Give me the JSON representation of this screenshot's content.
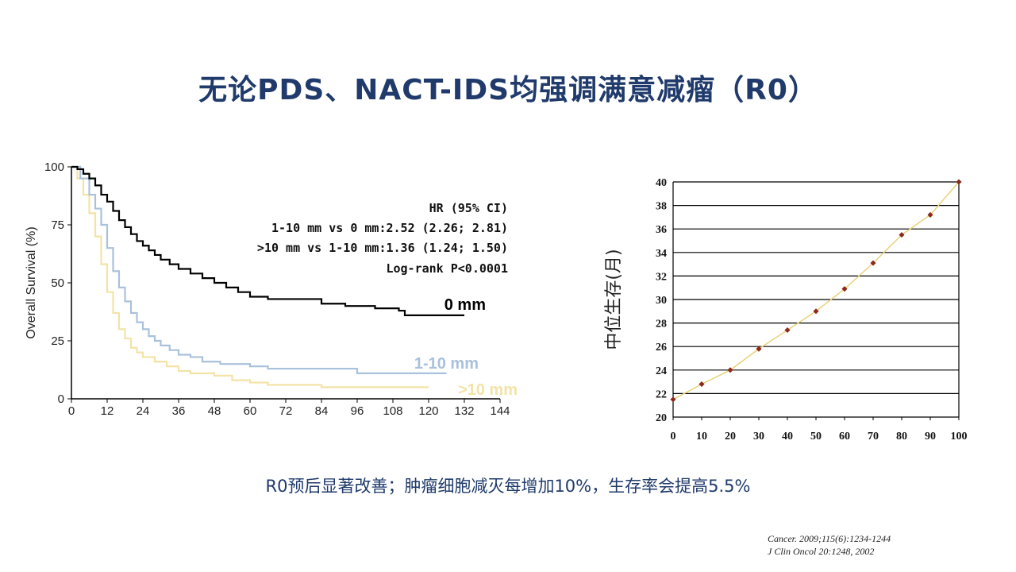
{
  "slide": {
    "title": "无论PDS、NACT-IDS均强调满意减瘤（R0）",
    "caption": "R0预后显著改善；肿瘤细胞减灭每增加10%，生存率会提高5.5%",
    "references": [
      "Cancer. 2009;115(6):1234-1244",
      "J Clin Oncol 20:1248, 2002"
    ]
  },
  "chart_data": [
    {
      "type": "line",
      "subtype": "kaplan-meier",
      "ylabel": "Overall Survival (%)",
      "xlabel": "",
      "xlim": [
        0,
        144
      ],
      "ylim": [
        0,
        100
      ],
      "xticks": [
        0,
        12,
        24,
        36,
        48,
        60,
        72,
        84,
        96,
        108,
        120,
        132,
        144
      ],
      "yticks": [
        0,
        25,
        50,
        75,
        100
      ],
      "annotations": [
        "HR (95% CI)",
        "1-10 mm vs 0 mm:2.52 (2.26; 2.81)",
        ">10 mm vs 1-10 mm:1.36 (1.24; 1.50)",
        "Log-rank P<0.0001"
      ],
      "series": [
        {
          "name": "0 mm",
          "color": "#000000",
          "points": [
            [
              0,
              100
            ],
            [
              2,
              99
            ],
            [
              4,
              97
            ],
            [
              6,
              95
            ],
            [
              8,
              92
            ],
            [
              10,
              88
            ],
            [
              12,
              85
            ],
            [
              14,
              81
            ],
            [
              16,
              77
            ],
            [
              18,
              74
            ],
            [
              20,
              71
            ],
            [
              22,
              68
            ],
            [
              24,
              66
            ],
            [
              26,
              64
            ],
            [
              28,
              62
            ],
            [
              30,
              60
            ],
            [
              33,
              58
            ],
            [
              36,
              56
            ],
            [
              40,
              54
            ],
            [
              44,
              52
            ],
            [
              48,
              50
            ],
            [
              52,
              48
            ],
            [
              56,
              46
            ],
            [
              60,
              44
            ],
            [
              66,
              43
            ],
            [
              76,
              43
            ],
            [
              84,
              41
            ],
            [
              92,
              40
            ],
            [
              102,
              39
            ],
            [
              110,
              38
            ],
            [
              112,
              36
            ],
            [
              132,
              36
            ]
          ]
        },
        {
          "name": "1-10 mm",
          "color": "#a9c1dc",
          "points": [
            [
              0,
              100
            ],
            [
              3,
              95
            ],
            [
              6,
              88
            ],
            [
              8,
              82
            ],
            [
              10,
              75
            ],
            [
              12,
              65
            ],
            [
              14,
              55
            ],
            [
              16,
              48
            ],
            [
              18,
              42
            ],
            [
              20,
              37
            ],
            [
              22,
              33
            ],
            [
              24,
              30
            ],
            [
              26,
              27
            ],
            [
              28,
              25
            ],
            [
              30,
              23
            ],
            [
              33,
              21
            ],
            [
              36,
              19
            ],
            [
              40,
              18
            ],
            [
              44,
              16
            ],
            [
              50,
              15
            ],
            [
              60,
              14
            ],
            [
              66,
              13
            ],
            [
              84,
              13
            ],
            [
              96,
              11
            ],
            [
              126,
              11
            ]
          ]
        },
        {
          "name": ">10 mm",
          "color": "#f3e3a6",
          "points": [
            [
              0,
              100
            ],
            [
              2,
              95
            ],
            [
              4,
              88
            ],
            [
              6,
              80
            ],
            [
              8,
              70
            ],
            [
              10,
              58
            ],
            [
              12,
              46
            ],
            [
              14,
              37
            ],
            [
              16,
              30
            ],
            [
              18,
              26
            ],
            [
              20,
              22
            ],
            [
              22,
              20
            ],
            [
              24,
              18
            ],
            [
              28,
              16
            ],
            [
              32,
              14
            ],
            [
              36,
              12
            ],
            [
              40,
              11
            ],
            [
              48,
              10
            ],
            [
              54,
              8
            ],
            [
              60,
              7
            ],
            [
              66,
              6
            ],
            [
              72,
              6
            ],
            [
              84,
              5
            ],
            [
              120,
              5
            ]
          ]
        }
      ]
    },
    {
      "type": "scatter",
      "ylabel": "中位生存(月)",
      "xlabel": "",
      "xlim": [
        0,
        100
      ],
      "ylim": [
        20,
        40
      ],
      "grid": true,
      "xticks": [
        0,
        10,
        20,
        30,
        40,
        50,
        60,
        70,
        80,
        90,
        100
      ],
      "yticks": [
        20,
        22,
        24,
        26,
        28,
        30,
        32,
        34,
        36,
        38,
        40
      ],
      "x": [
        0,
        10,
        20,
        30,
        40,
        50,
        60,
        70,
        80,
        90,
        100
      ],
      "y": [
        21.5,
        22.8,
        24.0,
        25.8,
        27.4,
        29.0,
        30.9,
        33.1,
        35.5,
        37.2,
        40.0
      ],
      "point_color": "#8b2a1a",
      "trend_color": "#e8d27a"
    }
  ]
}
